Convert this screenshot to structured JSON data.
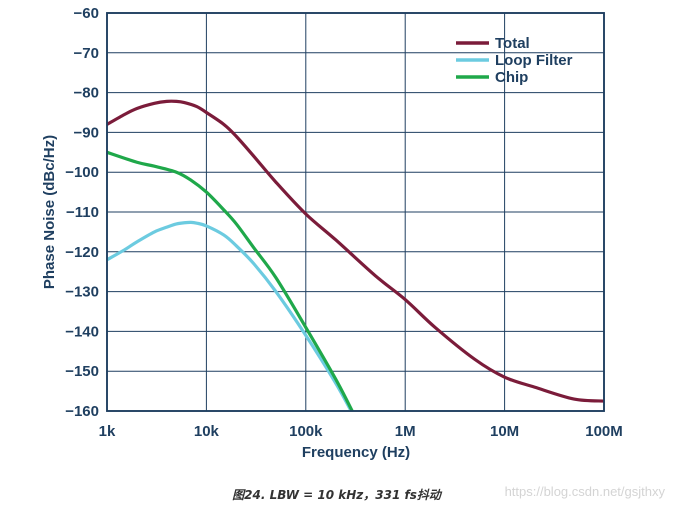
{
  "chart_data": {
    "type": "line",
    "xlabel": "Frequency (Hz)",
    "ylabel": "Phase Noise (dBc/Hz)",
    "x_scale": "log",
    "xlim": [
      1000,
      100000000
    ],
    "ylim": [
      -160,
      -60
    ],
    "x_ticks": [
      1000,
      10000,
      100000,
      1000000,
      10000000,
      100000000
    ],
    "x_tick_labels": [
      "1k",
      "10k",
      "100k",
      "1M",
      "10M",
      "100M"
    ],
    "y_ticks": [
      -60,
      -70,
      -80,
      -90,
      -100,
      -110,
      -120,
      -130,
      -140,
      -150,
      -160
    ],
    "y_tick_labels": [
      "−60",
      "−70",
      "−80",
      "−90",
      "−100",
      "−110",
      "−120",
      "−130",
      "−140",
      "−150",
      "−160"
    ],
    "grid": true,
    "legend_position": "top-right",
    "series": [
      {
        "name": "Total",
        "color": "#7b1c3a",
        "x": [
          1000,
          1500,
          2000,
          3000,
          4000,
          5000,
          6000,
          8000,
          10000,
          15000,
          20000,
          30000,
          50000,
          100000,
          200000,
          500000,
          1000000,
          2000000,
          5000000,
          10000000,
          20000000,
          50000000,
          100000000
        ],
        "y": [
          -88,
          -85.5,
          -84,
          -82.7,
          -82.2,
          -82.2,
          -82.5,
          -83.5,
          -85,
          -88,
          -91,
          -96,
          -102.5,
          -110.5,
          -117,
          -126,
          -132,
          -139,
          -147,
          -151.5,
          -154,
          -157,
          -157.5
        ]
      },
      {
        "name": "Loop Filter",
        "color": "#6ccbe0",
        "x": [
          1000,
          1500,
          2000,
          3000,
          4000,
          5000,
          6000,
          7000,
          8000,
          10000,
          15000,
          20000,
          30000,
          50000,
          100000,
          200000,
          300000
        ],
        "y": [
          -122,
          -119.5,
          -117.5,
          -115,
          -113.8,
          -113,
          -112.7,
          -112.6,
          -112.8,
          -113.5,
          -115.8,
          -118.5,
          -123,
          -130,
          -141,
          -153,
          -161
        ]
      },
      {
        "name": "Chip",
        "color": "#1fa84a",
        "x": [
          1000,
          2000,
          3000,
          5000,
          7000,
          10000,
          15000,
          20000,
          30000,
          50000,
          100000,
          200000,
          300000
        ],
        "y": [
          -95,
          -97.5,
          -98.5,
          -100,
          -102,
          -105,
          -109.5,
          -113,
          -119,
          -126.5,
          -139,
          -152,
          -160.5
        ]
      }
    ]
  },
  "caption": "图24. LBW = 10 kHz，331 fs抖动",
  "watermark": "https://blog.csdn.net/gsjthxy"
}
